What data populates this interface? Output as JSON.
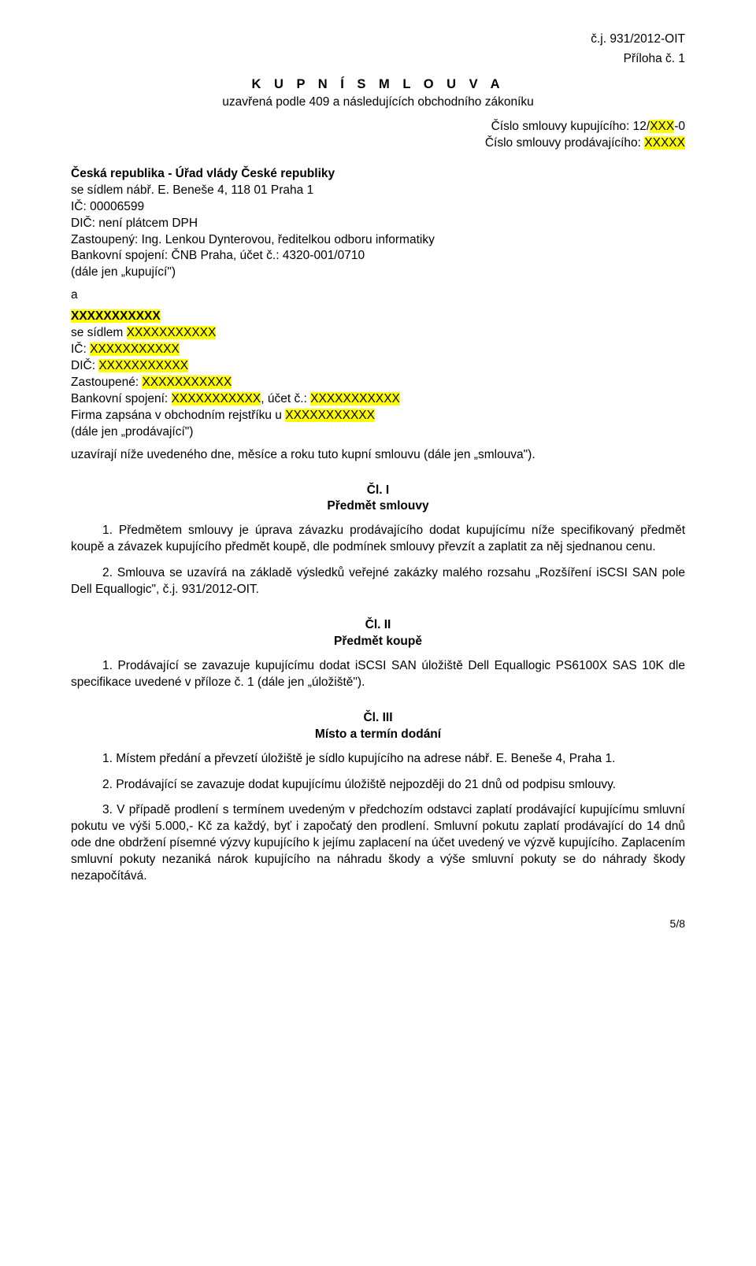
{
  "header_ref": "č.j. 931/2012-OIT",
  "attachment": "Příloha č. 1",
  "title": "K U P N Í   S M L O U V A",
  "subtitle": "uzavřená podle 409 a následujících obchodního zákoníku",
  "contract_buyer_prefix": "Číslo smlouvy kupujícího: 12/",
  "contract_buyer_hl": "XXX",
  "contract_buyer_suffix": "-0",
  "contract_seller_prefix": "Číslo smlouvy prodávajícího: ",
  "contract_seller_hl": "XXXXX",
  "buyer": {
    "name": "Česká republika - Úřad vlády České republiky",
    "address": "se sídlem nábř. E. Beneše 4, 118 01 Praha 1",
    "ico": "IČ: 00006599",
    "dic": "DIČ: není plátcem DPH",
    "rep": "Zastoupený: Ing. Lenkou Dynterovou, ředitelkou odboru informatiky",
    "bank": "Bankovní spojení: ČNB Praha, účet č.: 4320-001/0710",
    "alias": "(dále jen „kupující\")"
  },
  "and": "a",
  "seller": {
    "name": "XXXXXXXXXXX",
    "address_pre": "se sídlem ",
    "address_hl": "XXXXXXXXXXX",
    "ico_pre": "IČ: ",
    "ico_hl": "XXXXXXXXXXX",
    "dic_pre": "DIČ: ",
    "dic_hl": "XXXXXXXXXXX",
    "rep_pre": "Zastoupené: ",
    "rep_hl": "XXXXXXXXXXX",
    "bank_pre": "Bankovní spojení: ",
    "bank_hl1": "XXXXXXXXXXX",
    "bank_mid": ", účet č.: ",
    "bank_hl2": "XXXXXXXXXXX",
    "reg_pre": "Firma zapsána v obchodním rejstříku u ",
    "reg_hl": "XXXXXXXXXXX",
    "alias": "(dále jen „prodávající\")"
  },
  "closing": "uzavírají níže uvedeného dne, měsíce a roku tuto kupní smlouvu (dále jen „smlouva\").",
  "art1": {
    "num": "Čl. I",
    "title": "Předmět smlouvy",
    "p1": "1. Předmětem smlouvy je úprava závazku prodávajícího dodat kupujícímu níže specifikovaný předmět koupě a závazek kupujícího předmět koupě, dle podmínek smlouvy převzít a zaplatit za něj sjednanou cenu.",
    "p2": "2. Smlouva se uzavírá na základě výsledků veřejné zakázky malého rozsahu „Rozšíření iSCSI SAN pole Dell Equallogic\", č.j. 931/2012-OIT."
  },
  "art2": {
    "num": "Čl. II",
    "title": "Předmět koupě",
    "p1": "1. Prodávající se zavazuje kupujícímu dodat iSCSI SAN úložiště Dell Equallogic PS6100X SAS 10K dle specifikace uvedené v příloze č. 1 (dále jen „úložiště\")."
  },
  "art3": {
    "num": "Čl. III",
    "title": "Místo a termín dodání",
    "p1": "1. Místem předání a převzetí úložiště je sídlo kupujícího na adrese nábř. E. Beneše 4, Praha 1.",
    "p2": "2. Prodávající se zavazuje dodat kupujícímu úložiště nejpozději do 21 dnů od podpisu smlouvy.",
    "p3": "3. V případě prodlení s termínem uvedeným v předchozím odstavci zaplatí prodávající kupujícímu smluvní pokutu ve výši 5.000,- Kč za každý, byť i započatý den prodlení. Smluvní pokutu zaplatí prodávající do 14 dnů ode dne obdržení písemné výzvy kupujícího k jejímu zaplacení na účet uvedený ve výzvě kupujícího. Zaplacením smluvní pokuty nezaniká nárok kupujícího na náhradu škody a výše smluvní pokuty se do náhrady škody nezapočítává."
  },
  "pagenum": "5/8"
}
